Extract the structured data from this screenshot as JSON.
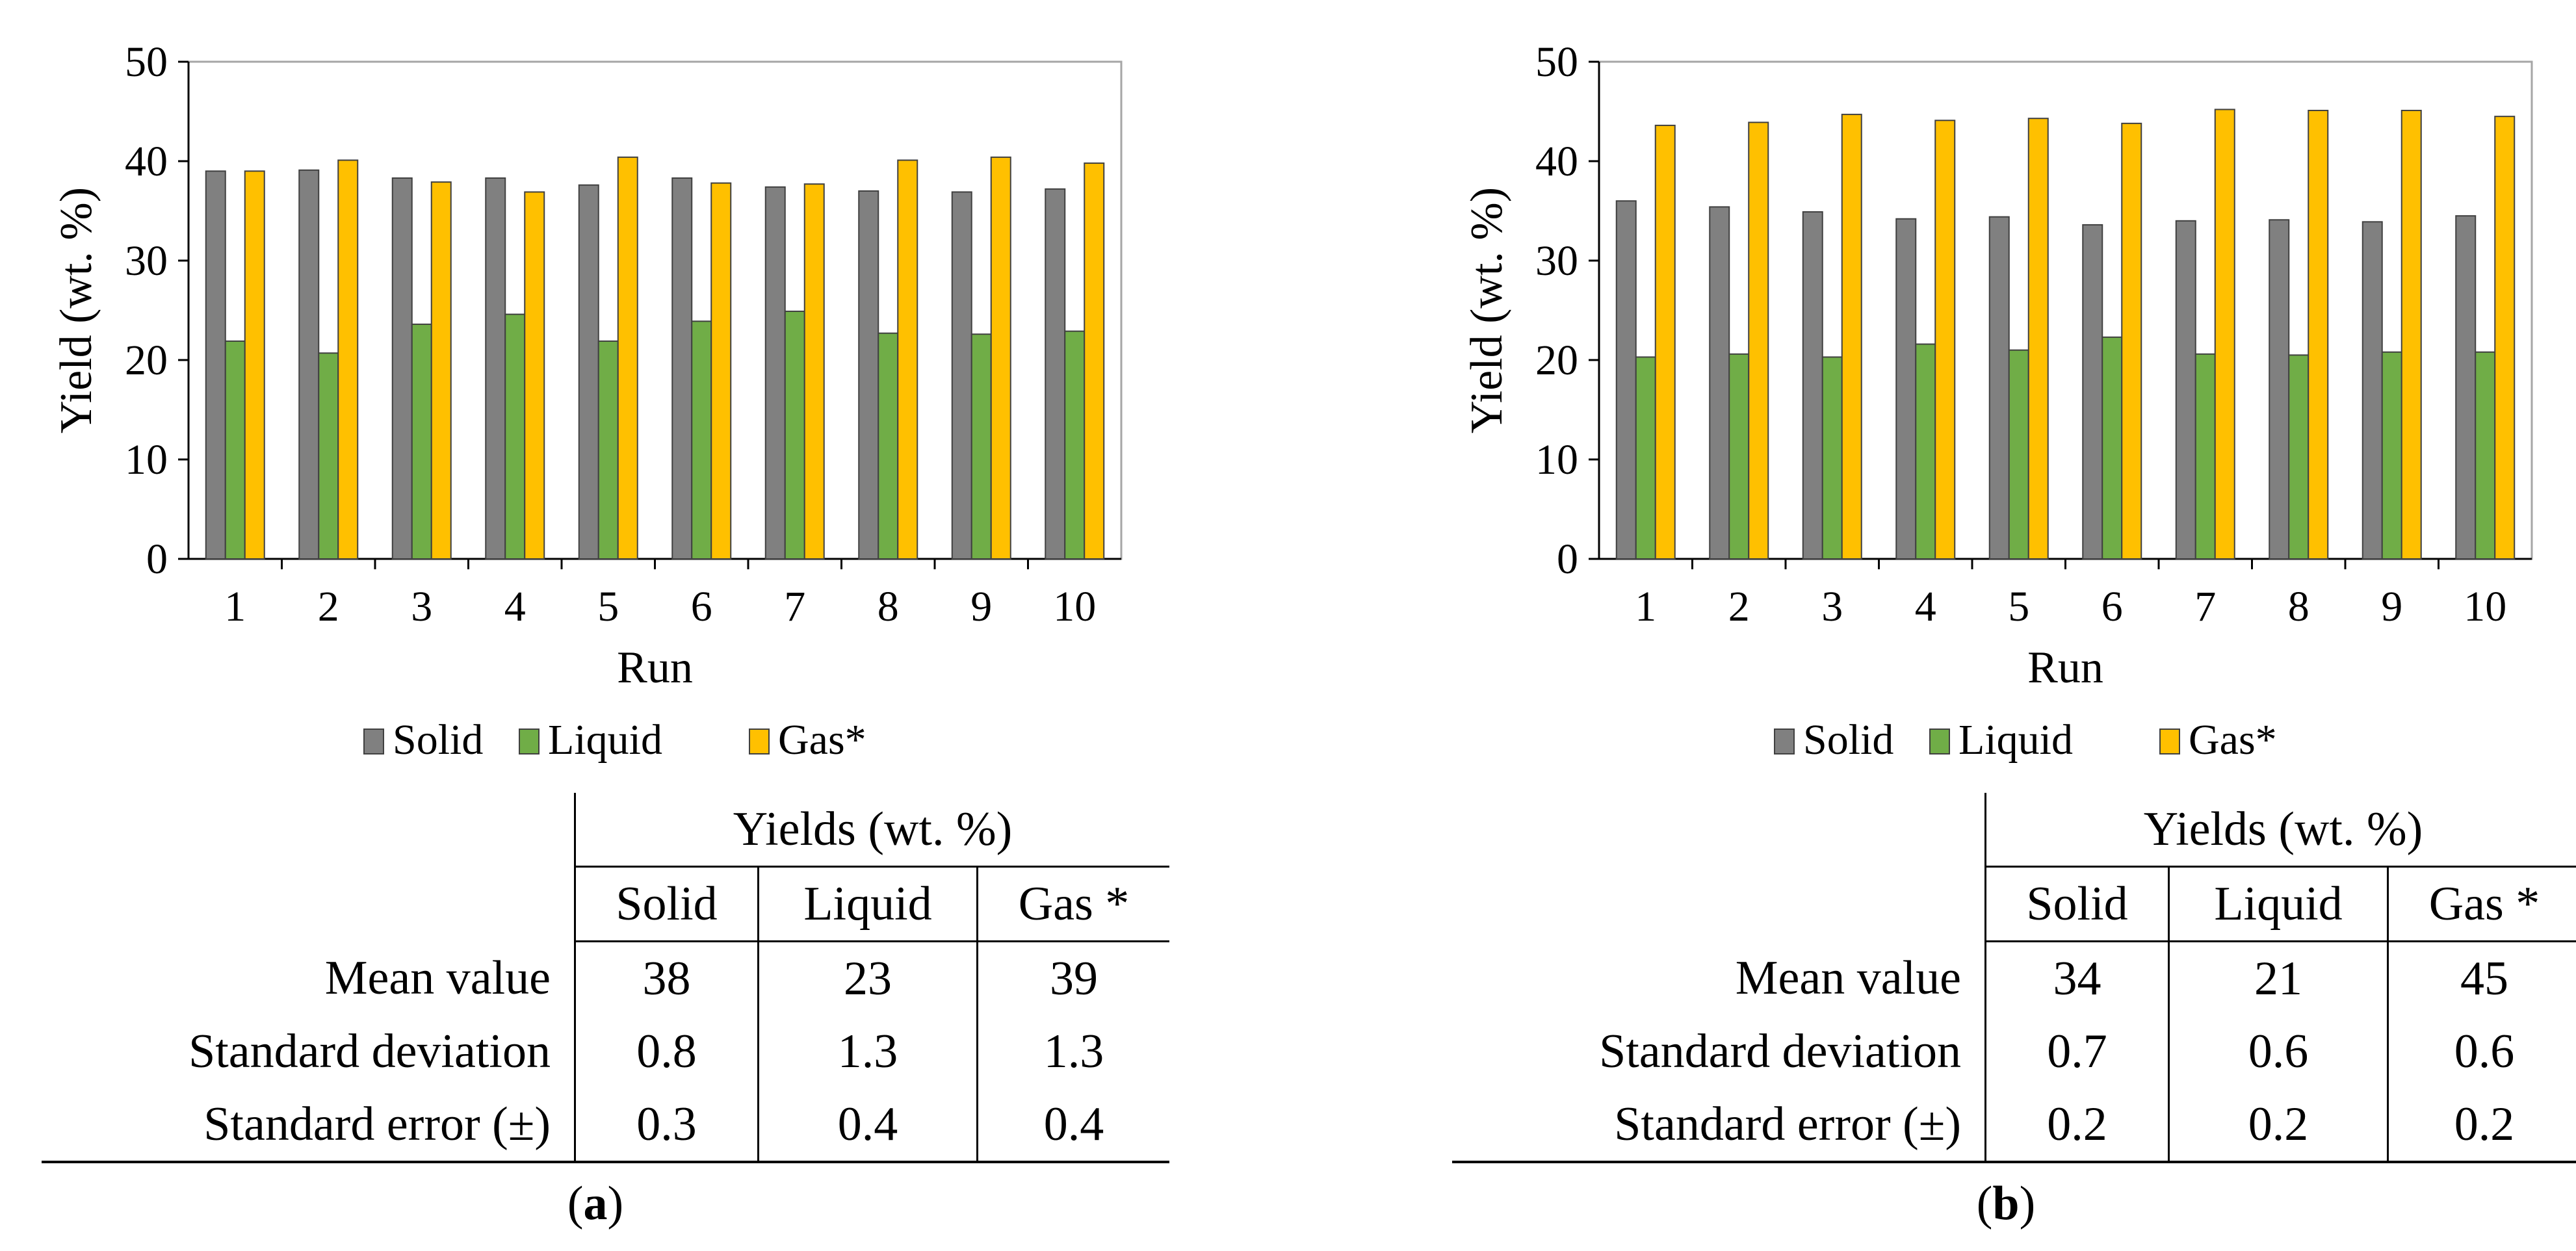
{
  "colors": {
    "solid": "#808080",
    "liquid": "#70ad47",
    "gas": "#ffc000"
  },
  "chart_data": [
    {
      "type": "bar",
      "panel": "a",
      "categories": [
        "1",
        "2",
        "3",
        "4",
        "5",
        "6",
        "7",
        "8",
        "9",
        "10"
      ],
      "series": [
        {
          "name": "Solid",
          "values": [
            39.0,
            39.1,
            38.3,
            38.3,
            37.6,
            38.3,
            37.4,
            37.0,
            36.9,
            37.2
          ]
        },
        {
          "name": "Liquid",
          "values": [
            21.9,
            20.7,
            23.6,
            24.6,
            21.9,
            23.9,
            24.9,
            22.7,
            22.6,
            22.9
          ]
        },
        {
          "name": "Gas*",
          "values": [
            39.0,
            40.1,
            37.9,
            36.9,
            40.4,
            37.8,
            37.7,
            40.1,
            40.4,
            39.8
          ]
        }
      ],
      "xlabel": "Run",
      "ylabel": "Yield (wt. %)",
      "ylim": [
        0,
        50
      ],
      "yticks": [
        "0",
        "10",
        "20",
        "30",
        "40",
        "50"
      ]
    },
    {
      "type": "bar",
      "panel": "b",
      "categories": [
        "1",
        "2",
        "3",
        "4",
        "5",
        "6",
        "7",
        "8",
        "9",
        "10"
      ],
      "series": [
        {
          "name": "Solid",
          "values": [
            36.0,
            35.4,
            34.9,
            34.2,
            34.4,
            33.6,
            34.0,
            34.1,
            33.9,
            34.5
          ]
        },
        {
          "name": "Liquid",
          "values": [
            20.3,
            20.6,
            20.3,
            21.6,
            21.0,
            22.3,
            20.6,
            20.5,
            20.8,
            20.8
          ]
        },
        {
          "name": "Gas*",
          "values": [
            43.6,
            43.9,
            44.7,
            44.1,
            44.3,
            43.8,
            45.2,
            45.1,
            45.1,
            44.5
          ]
        }
      ],
      "xlabel": "Run",
      "ylabel": "Yield (wt. %)",
      "ylim": [
        0,
        50
      ],
      "yticks": [
        "0",
        "10",
        "20",
        "30",
        "40",
        "50"
      ]
    }
  ],
  "tables": {
    "a": {
      "header": "Yields (wt. %)",
      "columns": [
        "Solid",
        "Liquid",
        "Gas *"
      ],
      "rows": [
        {
          "label": "Mean value",
          "values": [
            "38",
            "23",
            "39"
          ]
        },
        {
          "label": "Standard deviation",
          "values": [
            "0.8",
            "1.3",
            "1.3"
          ]
        },
        {
          "label": "Standard error (±)",
          "values": [
            "0.3",
            "0.4",
            "0.4"
          ]
        }
      ]
    },
    "b": {
      "header": "Yields (wt. %)",
      "columns": [
        "Solid",
        "Liquid",
        "Gas *"
      ],
      "rows": [
        {
          "label": "Mean value",
          "values": [
            "34",
            "21",
            "45"
          ]
        },
        {
          "label": "Standard deviation",
          "values": [
            "0.7",
            "0.6",
            "0.6"
          ]
        },
        {
          "label": "Standard error (±)",
          "values": [
            "0.2",
            "0.2",
            "0.2"
          ]
        }
      ]
    }
  },
  "captions": {
    "a": "a",
    "b": "b"
  }
}
